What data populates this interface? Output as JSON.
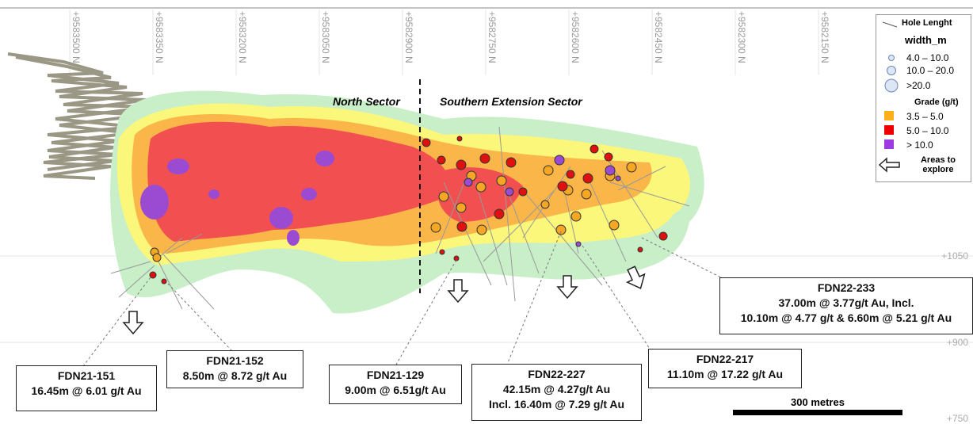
{
  "northings": [
    "+9583500 N",
    "+9583350 N",
    "+9583200 N",
    "+9583050 N",
    "+9582900 N",
    "+9582750 N",
    "+9582600 N",
    "+9582450 N",
    "+9582300 N",
    "+9582150 N"
  ],
  "elevations": [
    "+1050",
    "+900",
    "+750"
  ],
  "sectors": [
    "North Sector",
    "Southern Extension Sector"
  ],
  "legend": {
    "hole_label": "Hole Lenght",
    "width_title": "width_m",
    "widths": [
      "4.0 – 10.0",
      "10.0 – 20.0",
      ">20.0"
    ],
    "grade_title": "Grade (g/t)",
    "grades": [
      "3.5 – 5.0",
      "5.0 – 10.0",
      "> 10.0"
    ],
    "explore": "Areas to explore"
  },
  "callouts": [
    {
      "title": "FDN21-151",
      "lines": [
        "16.45m @ 6.01 g/t Au"
      ]
    },
    {
      "title": "FDN21-152",
      "lines": [
        "8.50m @ 8.72 g/t Au"
      ]
    },
    {
      "title": "FDN21-129",
      "lines": [
        "9.00m @ 6.51g/t Au"
      ]
    },
    {
      "title": "FDN22-227",
      "lines": [
        "42.15m @ 4.27g/t Au",
        "Incl. 16.40m @ 7.29 g/t Au"
      ]
    },
    {
      "title": "FDN22-217",
      "lines": [
        "11.10m @ 17.22 g/t Au"
      ]
    },
    {
      "title": "FDN22-233",
      "lines": [
        "37.00m @ 3.77g/t Au, Incl.",
        "10.10m @ 4.77 g/t & 6.60m @ 5.21 g/t Au"
      ]
    }
  ],
  "scale_bar": "300 metres"
}
